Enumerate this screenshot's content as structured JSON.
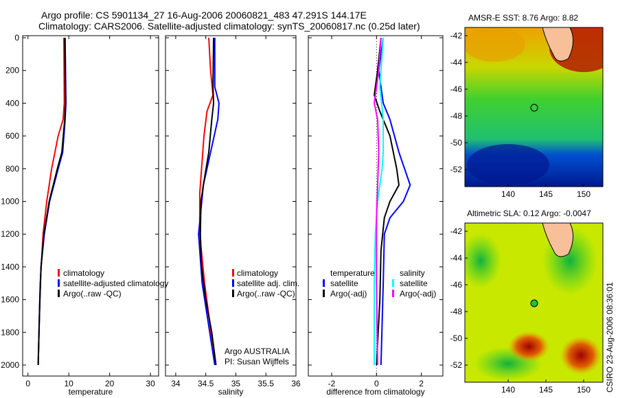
{
  "title_line1": "Argo profile: CS 5901134_27 16-Aug-2006 20060821_483 47.291S 144.17E",
  "title_line2": "Climatology: CARS2006. Satellite-adjusted climatology: synTS_20060817.nc (0.25d later)",
  "credit": "Argo AUSTRALIA",
  "pi": "PI: Susan Wijffels",
  "timestamp": "CSIRO 23-Aug-2006 08:36:01",
  "colors": {
    "climatology": "#ff0000",
    "satellite": "#0000ff",
    "argo": "#000000",
    "sal_satellite": "#00ffff",
    "sal_argo": "#ff00ff"
  },
  "chart_data": [
    {
      "type": "line",
      "xlabel": "temperature",
      "xlim": [
        -1.3,
        32
      ],
      "ylim": [
        0,
        2070
      ],
      "yreversed": true,
      "xticks": [
        "0",
        "10",
        "20",
        "30"
      ],
      "yticks": [
        "0",
        "200",
        "400",
        "600",
        "800",
        "1000",
        "1200",
        "1400",
        "1600",
        "1800",
        "2000"
      ],
      "legend": [
        "climatology",
        "satellite-adjusted climatology",
        "Argo(..raw -QC)"
      ],
      "series": [
        {
          "name": "climatology",
          "color": "#ff0000",
          "points": [
            [
              8.8,
              0
            ],
            [
              8.9,
              400
            ],
            [
              8.6,
              500
            ],
            [
              7.4,
              600
            ],
            [
              5.8,
              800
            ],
            [
              4.6,
              1000
            ],
            [
              3.7,
              1200
            ],
            [
              3.0,
              1500
            ],
            [
              2.5,
              2000
            ]
          ]
        },
        {
          "name": "satellite-adjusted climatology",
          "color": "#0000ff",
          "points": [
            [
              9.1,
              0
            ],
            [
              9.3,
              400
            ],
            [
              9.1,
              500
            ],
            [
              8.5,
              700
            ],
            [
              7.4,
              800
            ],
            [
              5.3,
              1000
            ],
            [
              4.0,
              1200
            ],
            [
              3.2,
              1400
            ],
            [
              2.8,
              1700
            ],
            [
              2.5,
              2000
            ]
          ]
        },
        {
          "name": "Argo",
          "color": "#000000",
          "points": [
            [
              9.0,
              0
            ],
            [
              9.2,
              400
            ],
            [
              9.0,
              500
            ],
            [
              8.3,
              700
            ],
            [
              7.2,
              800
            ],
            [
              5.2,
              1000
            ],
            [
              3.9,
              1200
            ],
            [
              3.2,
              1400
            ],
            [
              2.9,
              1600
            ],
            [
              2.7,
              1800
            ],
            [
              2.5,
              2000
            ]
          ]
        }
      ]
    },
    {
      "type": "line",
      "xlabel": "salinity",
      "xlim": [
        33.83,
        36.0
      ],
      "ylim": [
        0,
        2070
      ],
      "yreversed": true,
      "xticks": [
        "34",
        "34.5",
        "35",
        "35.5",
        "36"
      ],
      "legend": [
        "climatology",
        "satellite adj. clim.",
        "Argo(..raw -QC)"
      ],
      "series": [
        {
          "name": "climatology",
          "color": "#ff0000",
          "points": [
            [
              34.55,
              0
            ],
            [
              34.58,
              200
            ],
            [
              34.62,
              350
            ],
            [
              34.52,
              450
            ],
            [
              34.47,
              600
            ],
            [
              34.43,
              800
            ],
            [
              34.4,
              950
            ],
            [
              34.4,
              1200
            ],
            [
              34.48,
              1500
            ],
            [
              34.66,
              2000
            ]
          ]
        },
        {
          "name": "satellite adj. clim.",
          "color": "#0000ff",
          "points": [
            [
              34.65,
              0
            ],
            [
              34.65,
              300
            ],
            [
              34.72,
              400
            ],
            [
              34.7,
              500
            ],
            [
              34.58,
              700
            ],
            [
              34.46,
              900
            ],
            [
              34.38,
              1200
            ],
            [
              34.44,
              1500
            ],
            [
              34.65,
              2000
            ]
          ]
        },
        {
          "name": "Argo",
          "color": "#000000",
          "points": [
            [
              34.63,
              0
            ],
            [
              34.62,
              300
            ],
            [
              34.63,
              400
            ],
            [
              34.6,
              500
            ],
            [
              34.55,
              700
            ],
            [
              34.46,
              900
            ],
            [
              34.42,
              1000
            ],
            [
              34.41,
              1200
            ],
            [
              34.43,
              1400
            ],
            [
              34.5,
              1600
            ],
            [
              34.6,
              1800
            ],
            [
              34.67,
              2000
            ]
          ]
        }
      ]
    },
    {
      "type": "line",
      "xlabel": "difference from climatology",
      "xlim": [
        -3.04,
        2.96
      ],
      "ylim": [
        0,
        2070
      ],
      "yreversed": true,
      "xticks": [
        "-2",
        "0",
        "2"
      ],
      "legend_headers": [
        "temperature",
        "salinity"
      ],
      "legend": [
        "satellite",
        "Argo(-adj)",
        "satellite",
        "Argo(-adj)"
      ],
      "series": [
        {
          "name": "temperature satellite",
          "color": "#0000ff",
          "points": [
            [
              0.3,
              0
            ],
            [
              0.1,
              200
            ],
            [
              0.3,
              400
            ],
            [
              0.6,
              500
            ],
            [
              1.0,
              700
            ],
            [
              1.5,
              900
            ],
            [
              1.2,
              1000
            ],
            [
              0.6,
              1100
            ],
            [
              0.35,
              1200
            ],
            [
              0.3,
              1500
            ],
            [
              0.2,
              2000
            ]
          ]
        },
        {
          "name": "temperature Argo(-adj)",
          "color": "#000000",
          "points": [
            [
              0.2,
              0
            ],
            [
              0.05,
              200
            ],
            [
              -0.1,
              350
            ],
            [
              0.15,
              450
            ],
            [
              0.6,
              600
            ],
            [
              0.9,
              800
            ],
            [
              1.0,
              900
            ],
            [
              0.6,
              1000
            ],
            [
              0.35,
              1100
            ],
            [
              0.2,
              1300
            ],
            [
              0.15,
              1600
            ],
            [
              0.0,
              2000
            ]
          ]
        },
        {
          "name": "salinity satellite",
          "color": "#00ffff",
          "points": [
            [
              0.3,
              0
            ],
            [
              0.15,
              300
            ],
            [
              0.3,
              500
            ],
            [
              0.3,
              700
            ],
            [
              0.25,
              800
            ],
            [
              0.05,
              1000
            ],
            [
              -0.05,
              1200
            ],
            [
              -0.1,
              1500
            ],
            [
              -0.1,
              2000
            ]
          ]
        },
        {
          "name": "salinity Argo(-adj)",
          "color": "#ff00ff",
          "points": [
            [
              0.2,
              0
            ],
            [
              0.1,
              200
            ],
            [
              -0.1,
              400
            ],
            [
              0.05,
              500
            ],
            [
              0.1,
              700
            ],
            [
              0.05,
              900
            ],
            [
              0.0,
              1100
            ],
            [
              0.0,
              1500
            ],
            [
              0.05,
              2000
            ]
          ]
        }
      ]
    }
  ],
  "maps": [
    {
      "title": "AMSR-E SST: 8.76 Argo: 8.82",
      "xticks": [
        "140",
        "145",
        "150"
      ],
      "yticks": [
        "-42",
        "-44",
        "-46",
        "-48",
        "-50",
        "-52"
      ],
      "float_lon": 144.17,
      "float_lat": -47.29
    },
    {
      "title": "Altimetric SLA: 0.12 Argo: -0.0047",
      "xticks": [
        "140",
        "145",
        "150"
      ],
      "yticks": [
        "-42",
        "-44",
        "-46",
        "-48",
        "-50",
        "-52"
      ],
      "float_lon": 144.17,
      "float_lat": -47.29
    }
  ]
}
